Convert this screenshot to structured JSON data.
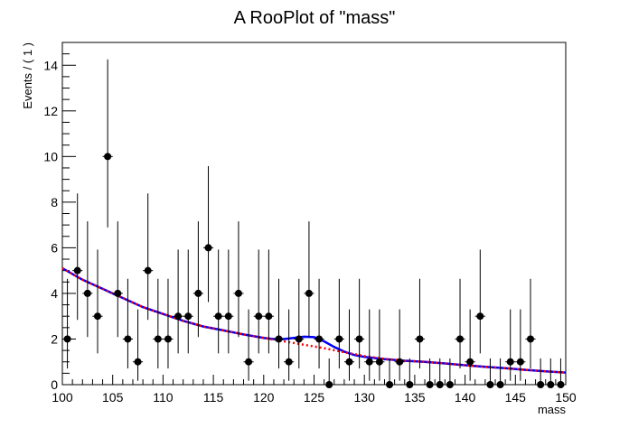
{
  "chart_data": {
    "type": "scatter",
    "title": "A RooPlot of \"mass\"",
    "xlabel": "mass",
    "ylabel": "Events / ( 1 )",
    "xlim": [
      100,
      150
    ],
    "ylim": [
      0,
      15
    ],
    "x_ticks": [
      100,
      105,
      110,
      115,
      120,
      125,
      130,
      135,
      140,
      145,
      150
    ],
    "y_ticks": [
      0,
      2,
      4,
      6,
      8,
      10,
      12,
      14
    ],
    "bin_width": 1,
    "grid": false,
    "series": [
      {
        "kind": "data_points_with_errors",
        "color": "#000000",
        "x": [
          100.5,
          101.5,
          102.5,
          103.5,
          104.5,
          105.5,
          106.5,
          107.5,
          108.5,
          109.5,
          110.5,
          111.5,
          112.5,
          113.5,
          114.5,
          115.5,
          116.5,
          117.5,
          118.5,
          119.5,
          120.5,
          121.5,
          122.5,
          123.5,
          124.5,
          125.5,
          126.5,
          127.5,
          128.5,
          129.5,
          130.5,
          131.5,
          132.5,
          133.5,
          134.5,
          135.5,
          136.5,
          137.5,
          138.5,
          139.5,
          140.5,
          141.5,
          142.5,
          143.5,
          144.5,
          145.5,
          146.5,
          147.5,
          148.5,
          149.5
        ],
        "y": [
          2,
          5,
          4,
          3,
          10,
          4,
          2,
          1,
          5,
          2,
          2,
          3,
          3,
          4,
          6,
          3,
          3,
          4,
          1,
          3,
          3,
          2,
          1,
          2,
          4,
          2,
          0,
          2,
          1,
          2,
          1,
          1,
          0,
          1,
          0,
          2,
          0,
          0,
          0,
          2,
          1,
          3,
          0,
          0,
          1,
          1,
          2,
          0,
          0,
          0
        ],
        "err_low": [
          1.29,
          2.16,
          1.91,
          1.63,
          3.11,
          1.91,
          1.29,
          0.83,
          2.16,
          1.29,
          1.29,
          1.63,
          1.63,
          1.91,
          2.38,
          1.63,
          1.63,
          1.91,
          0.83,
          1.63,
          1.63,
          1.29,
          0.83,
          1.29,
          1.91,
          1.29,
          0,
          1.29,
          0.83,
          1.29,
          0.83,
          0.83,
          0,
          0.83,
          0,
          1.29,
          0,
          0,
          0,
          1.29,
          0.83,
          1.63,
          0,
          0,
          0.83,
          0.83,
          1.29,
          0,
          0,
          0
        ],
        "err_high": [
          2.64,
          3.38,
          3.16,
          2.92,
          4.26,
          3.16,
          2.64,
          2.3,
          3.38,
          2.64,
          2.64,
          2.92,
          2.92,
          3.16,
          3.58,
          2.92,
          2.92,
          3.16,
          2.3,
          2.92,
          2.92,
          2.64,
          2.3,
          2.64,
          3.16,
          2.64,
          1.15,
          2.64,
          2.3,
          2.64,
          2.3,
          2.3,
          1.15,
          2.3,
          1.15,
          2.64,
          1.15,
          1.15,
          1.15,
          2.64,
          2.3,
          2.92,
          1.15,
          1.15,
          2.3,
          2.3,
          2.64,
          1.15,
          1.15,
          1.15
        ]
      },
      {
        "kind": "total_model_curve",
        "color": "#0000ff",
        "x": [
          100,
          102,
          104,
          106,
          108,
          110,
          112,
          114,
          116,
          118,
          120,
          121,
          122,
          123,
          124,
          125,
          126,
          127,
          128,
          129,
          130,
          132,
          134,
          136,
          138,
          140,
          142,
          144,
          146,
          148,
          150
        ],
        "y": [
          5.1,
          4.6,
          4.2,
          3.8,
          3.4,
          3.1,
          2.8,
          2.55,
          2.38,
          2.2,
          2.05,
          2.0,
          2.0,
          2.05,
          2.1,
          2.08,
          1.9,
          1.65,
          1.45,
          1.3,
          1.22,
          1.12,
          1.05,
          1.0,
          0.93,
          0.85,
          0.78,
          0.72,
          0.65,
          0.58,
          0.53
        ]
      },
      {
        "kind": "background_curve_dashed",
        "color": "#ff0000",
        "x": [
          100,
          102,
          104,
          106,
          108,
          110,
          112,
          114,
          116,
          118,
          120,
          122,
          124,
          126,
          128,
          130,
          132,
          134,
          136,
          138,
          140,
          142,
          144,
          146,
          148,
          150
        ],
        "y": [
          5.1,
          4.6,
          4.2,
          3.8,
          3.4,
          3.1,
          2.8,
          2.55,
          2.38,
          2.2,
          2.05,
          1.9,
          1.75,
          1.6,
          1.42,
          1.25,
          1.13,
          1.05,
          1.0,
          0.93,
          0.85,
          0.78,
          0.72,
          0.65,
          0.58,
          0.53
        ]
      }
    ]
  }
}
